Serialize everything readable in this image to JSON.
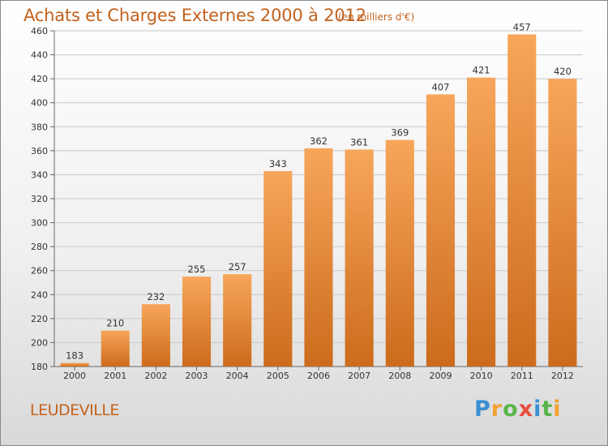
{
  "title": "Achats et Charges Externes 2000 à 2012",
  "unit_note": "(en milliers d'€)",
  "commune": "LEUDEVILLE",
  "logo": {
    "text": "Proxiti",
    "letters": [
      {
        "char": "P",
        "color": "#3a8fd1"
      },
      {
        "char": "r",
        "color": "#f2a033"
      },
      {
        "char": "o",
        "color": "#59b447"
      },
      {
        "char": "x",
        "color": "#e84c3d"
      },
      {
        "char": "i",
        "color": "#3a8fd1"
      },
      {
        "char": "t",
        "color": "#59b447"
      },
      {
        "char": "i",
        "color": "#f2a033"
      }
    ]
  },
  "colors": {
    "bar_light": "#f7a65b",
    "bar_dark": "#cc6b1c",
    "title": "#c2621e",
    "grid": "#c8c8c8"
  },
  "chart_data": {
    "type": "bar",
    "title": "Achats et Charges Externes 2000 à 2012",
    "xlabel": "",
    "ylabel": "",
    "categories": [
      "2000",
      "2001",
      "2002",
      "2003",
      "2004",
      "2005",
      "2006",
      "2007",
      "2008",
      "2009",
      "2010",
      "2011",
      "2012"
    ],
    "values": [
      183,
      210,
      232,
      255,
      257,
      343,
      362,
      361,
      369,
      407,
      421,
      457,
      420
    ],
    "ylim": [
      180,
      460
    ],
    "yticks": [
      180,
      200,
      220,
      240,
      260,
      280,
      300,
      320,
      340,
      360,
      380,
      400,
      420,
      440,
      460
    ],
    "grid": true,
    "data_labels": true
  }
}
